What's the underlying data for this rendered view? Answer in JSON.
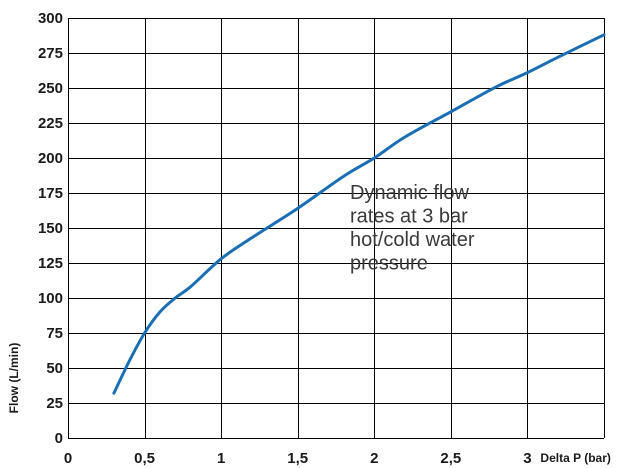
{
  "chart_data": {
    "type": "line",
    "xlabel": "Delta P (bar)",
    "ylabel": "Flow (L/min)",
    "xlim": [
      0,
      3.5
    ],
    "ylim": [
      0,
      300
    ],
    "x_ticks": [
      0,
      0.5,
      1,
      1.5,
      2,
      2.5,
      3
    ],
    "x_tick_labels": [
      "0",
      "0,5",
      "1",
      "1,5",
      "2",
      "2,5",
      "3"
    ],
    "y_ticks": [
      0,
      25,
      50,
      75,
      100,
      125,
      150,
      175,
      200,
      225,
      250,
      275,
      300
    ],
    "y_tick_labels": [
      "0",
      "25",
      "50",
      "75",
      "100",
      "125",
      "150",
      "175",
      "200",
      "225",
      "250",
      "275",
      "300"
    ],
    "grid": true,
    "annotation": [
      "Dynamic flow",
      "rates at 3 bar",
      "hot/cold water",
      "pressure"
    ],
    "series": [
      {
        "color": "#1a6eb5",
        "x": [
          0.3,
          0.4,
          0.5,
          0.6,
          0.7,
          0.8,
          1.0,
          1.2,
          1.5,
          1.8,
          2.0,
          2.2,
          2.5,
          2.8,
          3.0,
          3.2,
          3.5
        ],
        "y": [
          32,
          55,
          75,
          90,
          100,
          108,
          128,
          143,
          164,
          187,
          200,
          215,
          233,
          251,
          261,
          272,
          288
        ]
      }
    ]
  }
}
